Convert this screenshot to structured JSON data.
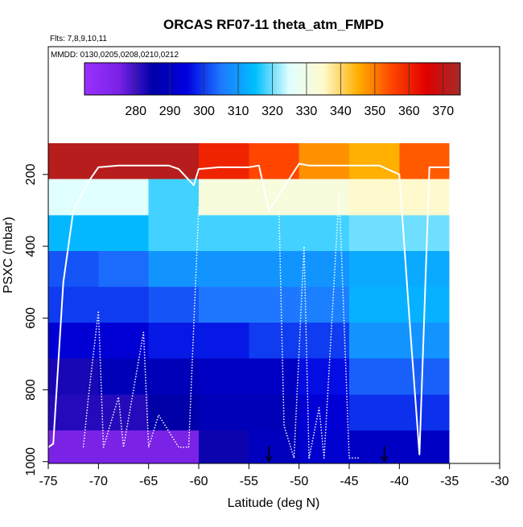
{
  "chart_data": {
    "type": "heatmap",
    "title": "ORCAS RF07-11 theta_atm_FMPD",
    "subtitle": "Flts: 7,8,9,10,11",
    "annotation": "MMDD: 0130,0205,0208,0210,0212",
    "x_label": "Latitude (deg N)",
    "y_label": "PSXC (mbar)",
    "xlim": [
      -75,
      -30
    ],
    "xticks": [
      -75,
      -70,
      -65,
      -60,
      -55,
      -50,
      -45,
      -40,
      -35,
      -30
    ],
    "ylim": [
      1005,
      -156
    ],
    "yticks": [
      200,
      400,
      600,
      800,
      1000
    ],
    "clim": [
      265,
      375
    ],
    "cticks": [
      280,
      290,
      300,
      310,
      320,
      330,
      340,
      350,
      360,
      370
    ],
    "colormap": [
      "#9b30ff",
      "#7a22e6",
      "#0000a8",
      "#0000e0",
      "#1e78ff",
      "#00bfff",
      "#e0ffff",
      "#fffacd",
      "#ffb000",
      "#ff4500",
      "#e00000",
      "#a52a2a"
    ],
    "heatmap": {
      "x_edges": [
        -75,
        -70,
        -65,
        -60,
        -55,
        -50,
        -45,
        -40,
        -35
      ],
      "y_edges": [
        113,
        213,
        313,
        413,
        513,
        613,
        713,
        813,
        913,
        1005
      ],
      "values": [
        [
          372,
          372,
          372,
          360,
          355,
          348,
          345,
          353
        ],
        [
          325,
          325,
          318,
          332,
          332,
          332,
          335,
          335
        ],
        [
          314,
          314,
          318,
          318,
          318,
          318,
          320,
          320
        ],
        [
          302,
          304,
          309,
          309,
          309,
          309,
          312,
          312
        ],
        [
          300,
          300,
          302,
          305,
          305,
          306,
          313,
          313
        ],
        [
          293,
          293,
          297,
          297,
          300,
          300,
          309,
          309
        ],
        [
          283,
          288,
          288,
          290,
          290,
          296,
          303,
          303
        ],
        [
          282,
          282,
          285,
          288,
          288,
          293,
          299,
          299
        ],
        [
          275,
          275,
          275,
          284,
          289,
          292,
          290,
          290
        ]
      ]
    },
    "tracks": [
      {
        "style": "solid",
        "color": "#ffffff",
        "x": [
          -75,
          -74.5,
          -73.5,
          -72.5,
          -71,
          -70,
          -68,
          -66,
          -63,
          -62,
          -60.5,
          -60,
          -58,
          -57.5,
          -55
        ],
        "y": [
          960,
          950,
          500,
          300,
          220,
          180,
          175,
          175,
          175,
          185,
          230,
          185,
          180,
          180,
          180
        ]
      },
      {
        "style": "solid",
        "color": "#ffffff",
        "x": [
          -55,
          -54,
          -53,
          -50,
          -49,
          -48,
          -47.5,
          -46,
          -44,
          -42,
          -40,
          -39,
          -38,
          -37,
          -35
        ],
        "y": [
          180,
          175,
          300,
          170,
          175,
          175,
          175,
          175,
          175,
          175,
          200,
          600,
          980,
          180,
          180
        ]
      },
      {
        "style": "dotted",
        "color": "#ffffff",
        "x": [
          -71.5,
          -71,
          -70,
          -69.5,
          -68,
          -67.5,
          -65.5,
          -65,
          -64,
          -62,
          -61,
          -60
        ],
        "y": [
          960,
          820,
          580,
          960,
          820,
          960,
          640,
          960,
          870,
          960,
          960,
          290
        ]
      },
      {
        "style": "dotted",
        "color": "#ffffff",
        "x": [
          -52,
          -51.5,
          -50.5,
          -49.5,
          -49,
          -48,
          -47.5,
          -46,
          -45,
          -44
        ],
        "y": [
          300,
          900,
          990,
          400,
          990,
          850,
          990,
          250,
          990,
          990
        ]
      }
    ],
    "arrow_x": [
      -53,
      -41.5
    ]
  }
}
